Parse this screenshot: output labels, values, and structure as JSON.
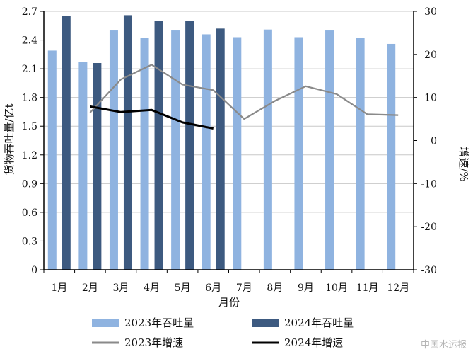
{
  "chart_data": {
    "type": "bar",
    "categories": [
      "1月",
      "2月",
      "3月",
      "4月",
      "5月",
      "6月",
      "7月",
      "8月",
      "9月",
      "10月",
      "11月",
      "12月"
    ],
    "xlabel": "月份",
    "ylabel": "货物吞吐量/亿t",
    "y2label": "增速/%",
    "ylim": [
      0,
      2.7
    ],
    "yticks": [
      0,
      0.3,
      0.6,
      0.9,
      1.2,
      1.5,
      1.8,
      2.1,
      2.4,
      2.7
    ],
    "y2lim": [
      -30,
      30
    ],
    "y2ticks": [
      -30,
      -20,
      -10,
      0,
      10,
      20,
      30
    ],
    "grid": true,
    "legend_position": "bottom",
    "bar_series": [
      {
        "name": "2023年吞吐量",
        "color": "#8fb3e0",
        "values": [
          2.29,
          2.17,
          2.5,
          2.42,
          2.5,
          2.46,
          2.43,
          2.51,
          2.43,
          2.5,
          2.42,
          2.36
        ]
      },
      {
        "name": "2024年吞吐量",
        "color": "#3d5a80",
        "values": [
          2.65,
          2.16,
          2.66,
          2.6,
          2.6,
          2.52,
          null,
          null,
          null,
          null,
          null,
          null
        ]
      }
    ],
    "line_series": [
      {
        "name": "2023年增速",
        "color": "#8a8a8a",
        "axis": "right",
        "values": [
          null,
          6.5,
          14.2,
          17.6,
          13.0,
          11.7,
          5.0,
          9.2,
          12.6,
          10.8,
          6.1,
          5.9
        ]
      },
      {
        "name": "2024年增速",
        "color": "#000000",
        "axis": "right",
        "values": [
          null,
          7.9,
          6.6,
          7.1,
          4.2,
          2.8,
          null,
          null,
          null,
          null,
          null,
          null
        ]
      }
    ]
  },
  "watermark": "中国水运报"
}
